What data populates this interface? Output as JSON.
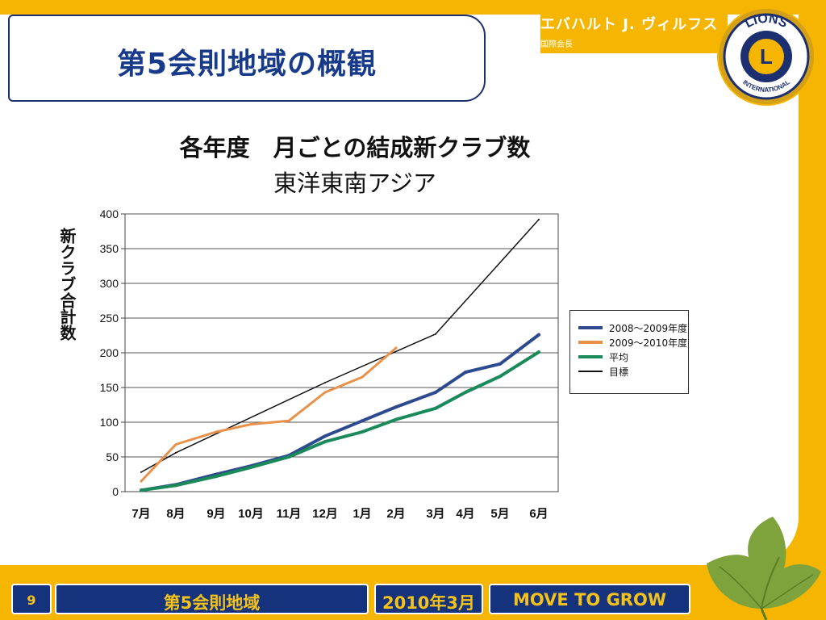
{
  "slide": {
    "title": "第5会則地域の概観",
    "president": {
      "name": "エバハルト J. ヴィルフス",
      "role": "国際会長"
    },
    "logo": {
      "top_text": "LIONS",
      "bottom_text": "INTERNATIONAL",
      "letter": "L"
    }
  },
  "footer": {
    "page_number": "9",
    "district": "第5会則地域",
    "date": "2010年3月",
    "slogan": "MOVE TO GROW"
  },
  "colors": {
    "brand_yellow": "#f5b500",
    "brand_blue": "#15337d",
    "series_2008": "#2e4a8f",
    "series_2009": "#e8914b",
    "series_avg": "#1a8a5a",
    "series_target": "#111111"
  },
  "chart_data": {
    "type": "line",
    "title": "各年度　月ごとの結成新クラブ数",
    "subtitle": "東洋東南アジア",
    "xlabel": "",
    "ylabel": "新クラブ合計数",
    "categories": [
      "7月",
      "8月",
      "9月",
      "10月",
      "11月",
      "12月",
      "1月",
      "2月",
      "3月",
      "4月",
      "5月",
      "6月"
    ],
    "yticks": [
      0,
      50,
      100,
      150,
      200,
      250,
      300,
      350,
      400
    ],
    "ylim": [
      0,
      400
    ],
    "grid": true,
    "legend_position": "right",
    "series": [
      {
        "name": "2008～2009年度",
        "color": "#2e4a8f",
        "width": 4,
        "values": [
          2,
          10,
          25,
          37,
          52,
          80,
          102,
          122,
          143,
          172,
          184,
          226
        ]
      },
      {
        "name": "2009～2010年度",
        "color": "#e8914b",
        "width": 3,
        "values": [
          15,
          68,
          86,
          97,
          102,
          143,
          165,
          207,
          null,
          null,
          null,
          null
        ]
      },
      {
        "name": "平均",
        "color": "#1a8a5a",
        "width": 4,
        "values": [
          2,
          9,
          22,
          35,
          50,
          72,
          86,
          104,
          120,
          143,
          166,
          201
        ]
      },
      {
        "name": "目標",
        "color": "#111111",
        "width": 1.5,
        "values": [
          28,
          56,
          null,
          null,
          null,
          157,
          null,
          null,
          227,
          null,
          null,
          392
        ]
      }
    ]
  }
}
